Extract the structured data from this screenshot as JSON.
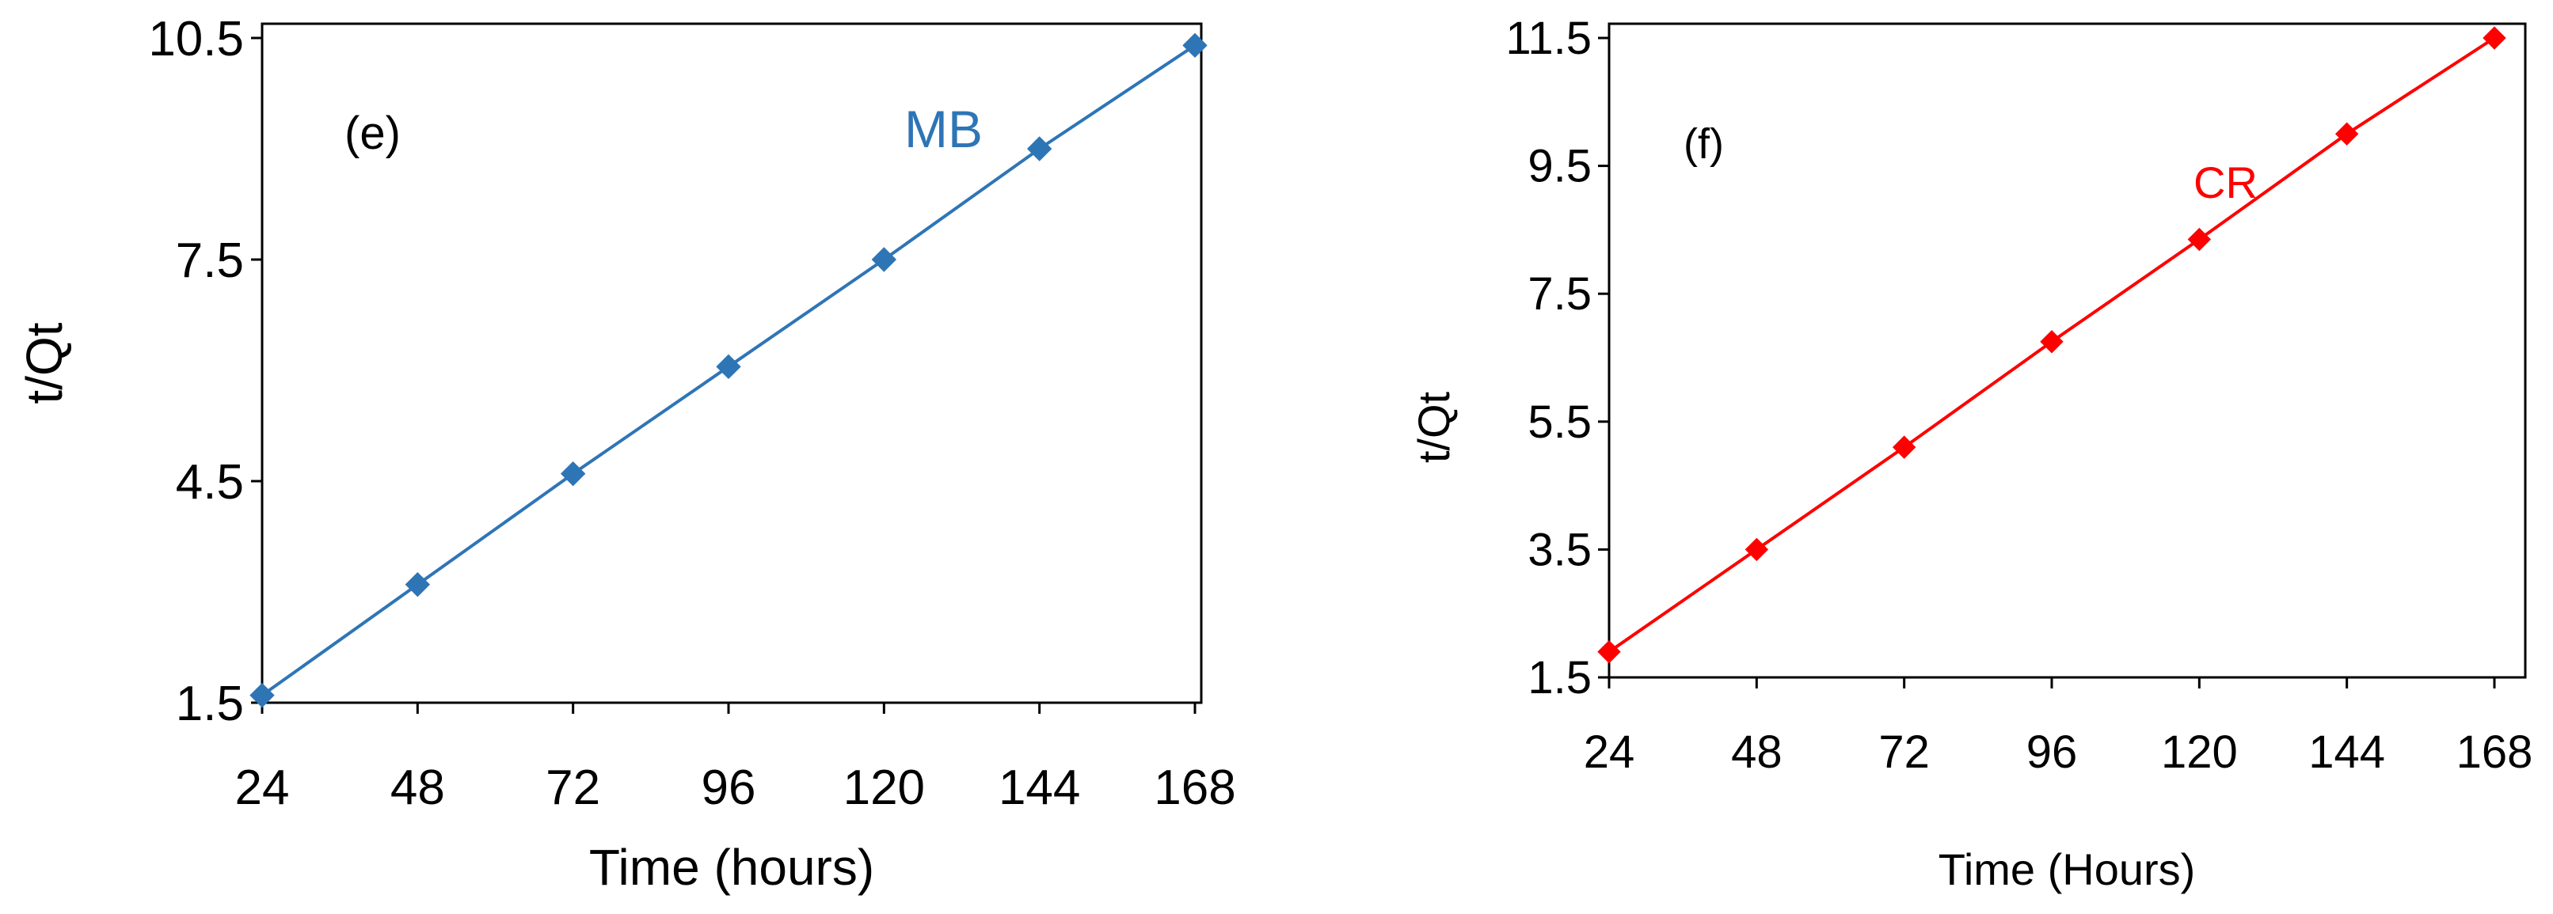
{
  "chart_data": [
    {
      "type": "line",
      "panel_label": "(e)",
      "xlabel": "Time (hours)",
      "ylabel": "t/Qt",
      "x_ticks": [
        "24",
        "48",
        "72",
        "96",
        "120",
        "144",
        "168"
      ],
      "y_ticks": [
        "1.5",
        "4.5",
        "7.5",
        "10.5"
      ],
      "xlim": [
        24,
        168
      ],
      "ylim": [
        1.5,
        10.5
      ],
      "grid": false,
      "series": [
        {
          "name": "MB",
          "color": "#2e75b6",
          "marker": "diamond",
          "x": [
            24,
            48,
            72,
            96,
            120,
            144,
            168
          ],
          "y": [
            1.6,
            3.1,
            4.6,
            6.05,
            7.5,
            9.0,
            10.4
          ]
        }
      ]
    },
    {
      "type": "line",
      "panel_label": "(f)",
      "xlabel": "Time (Hours)",
      "ylabel": "t/Qt",
      "x_ticks": [
        "24",
        "48",
        "72",
        "96",
        "120",
        "144",
        "168"
      ],
      "y_ticks": [
        "1.5",
        "3.5",
        "5.5",
        "7.5",
        "9.5",
        "11.5"
      ],
      "xlim": [
        24,
        168
      ],
      "ylim": [
        1.5,
        11.5
      ],
      "grid": false,
      "series": [
        {
          "name": "CR",
          "color": "#ff0000",
          "marker": "diamond",
          "x": [
            24,
            48,
            72,
            96,
            120,
            144,
            168
          ],
          "y": [
            1.9,
            3.5,
            5.1,
            6.75,
            8.35,
            10.0,
            11.5
          ]
        }
      ]
    }
  ]
}
